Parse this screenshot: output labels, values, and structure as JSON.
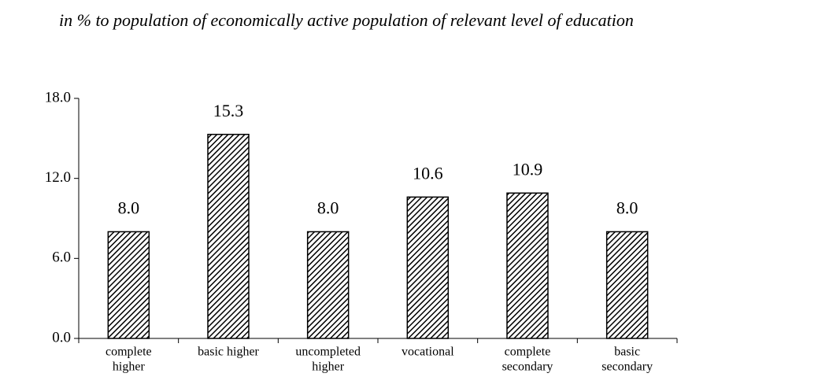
{
  "chart_data": {
    "type": "bar",
    "title": "in % to population of economically active population of relevant level of education",
    "categories": [
      [
        "complete",
        "higher"
      ],
      [
        "basic higher"
      ],
      [
        "uncompleted",
        "higher"
      ],
      [
        "vocational"
      ],
      [
        "complete",
        "secondary"
      ],
      [
        "basic",
        "secondary"
      ]
    ],
    "values": [
      8.0,
      15.3,
      8.0,
      10.6,
      10.9,
      8.0
    ],
    "value_labels": [
      "8.0",
      "15.3",
      "8.0",
      "10.6",
      "10.9",
      "8.0"
    ],
    "color": "#000000",
    "ylim": [
      0,
      18
    ],
    "yticks": [
      {
        "value": 0,
        "label": "0.0"
      },
      {
        "value": 6,
        "label": "6.0"
      },
      {
        "value": 12,
        "label": "12.0"
      },
      {
        "value": 18,
        "label": "18.0"
      }
    ],
    "grid": false
  }
}
